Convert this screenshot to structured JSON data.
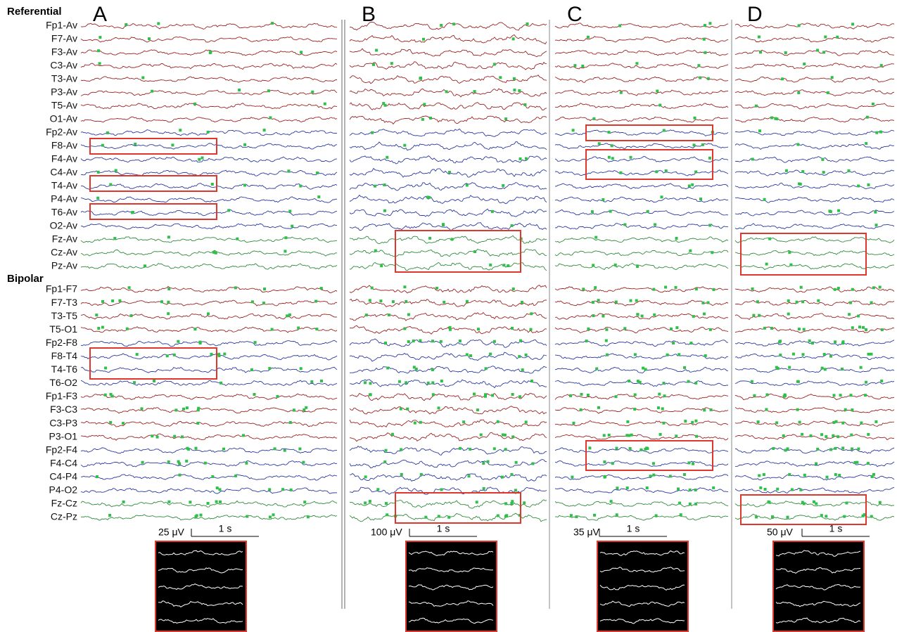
{
  "sections": [
    {
      "title": "Referential",
      "channels": [
        "Fp1-Av",
        "F7-Av",
        "F3-Av",
        "C3-Av",
        "T3-Av",
        "P3-Av",
        "T5-Av",
        "O1-Av",
        "Fp2-Av",
        "F8-Av",
        "F4-Av",
        "C4-Av",
        "T4-Av",
        "P4-Av",
        "T6-Av",
        "O2-Av",
        "Fz-Av",
        "Cz-Av",
        "Pz-Av"
      ]
    },
    {
      "title": "Bipolar",
      "channels": [
        "Fp1-F7",
        "F7-T3",
        "T3-T5",
        "T5-O1",
        "Fp2-F8",
        "F8-T4",
        "T4-T6",
        "T6-O2",
        "Fp1-F3",
        "F3-C3",
        "C3-P3",
        "P3-O1",
        "Fp2-F4",
        "F4-C4",
        "C4-P4",
        "P4-O2",
        "Fz-Cz",
        "Cz-Pz"
      ]
    }
  ],
  "panels": [
    {
      "label": "A",
      "amplitude_scale": "25 μV",
      "time_scale": "1 s"
    },
    {
      "label": "B",
      "amplitude_scale": "100 μV",
      "time_scale": "1 s"
    },
    {
      "label": "C",
      "amplitude_scale": "35 μV",
      "time_scale": "1 s"
    },
    {
      "label": "D",
      "amplitude_scale": "50 μV",
      "time_scale": "1 s"
    }
  ]
}
